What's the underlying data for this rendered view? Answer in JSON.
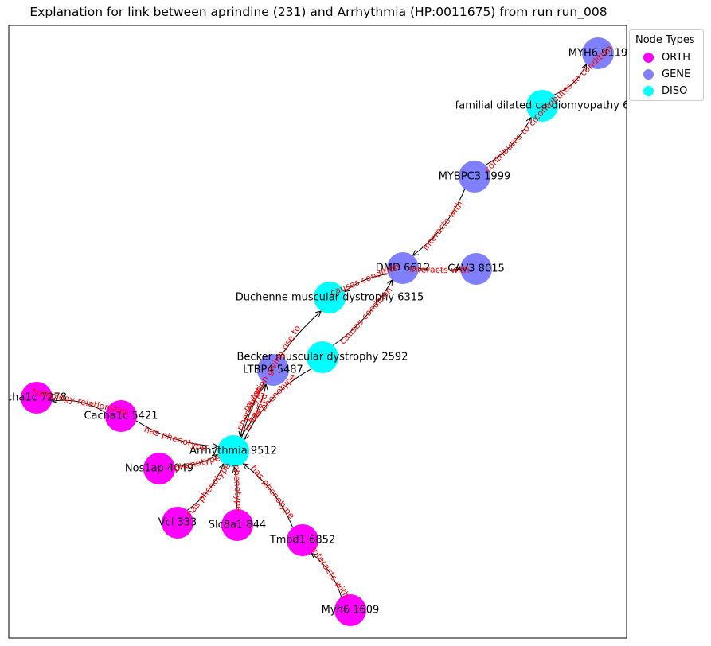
{
  "title": "Explanation for link between aprindine (231) and Arrhythmia (HP:0011675) from run run_008",
  "legend": {
    "title": "Node Types",
    "items": [
      {
        "label": "ORTH",
        "color": "#ff00ff"
      },
      {
        "label": "GENE",
        "color": "#8080ff"
      },
      {
        "label": "DISO",
        "color": "#00ffff"
      }
    ]
  },
  "nodes": [
    {
      "id": "myh6_9119",
      "label": "MYH6 9119",
      "type": "GENE"
    },
    {
      "id": "fdc",
      "label": "familial dilated cardiomyopathy 6",
      "type": "DISO"
    },
    {
      "id": "mybpc3",
      "label": "MYBPC3 1999",
      "type": "GENE"
    },
    {
      "id": "dmd",
      "label": "DMD 6612",
      "type": "GENE"
    },
    {
      "id": "cav3",
      "label": "CAV3 8015",
      "type": "GENE"
    },
    {
      "id": "duchenne",
      "label": "Duchenne muscular dystrophy 6315",
      "type": "DISO"
    },
    {
      "id": "becker",
      "label": "Becker muscular dystrophy 2592",
      "type": "DISO"
    },
    {
      "id": "ltbp4",
      "label": "LTBP4 5487",
      "type": "GENE"
    },
    {
      "id": "cacna1c_7278",
      "label": "cha1c 7278",
      "type": "ORTH"
    },
    {
      "id": "cacna1c_5421",
      "label": "Cacna1c 5421",
      "type": "ORTH"
    },
    {
      "id": "arrhythmia",
      "label": "Arrhythmia 9512",
      "type": "DISO"
    },
    {
      "id": "nos1ap",
      "label": "Nos1ap 4049",
      "type": "ORTH"
    },
    {
      "id": "vcl",
      "label": "Vcl 333",
      "type": "ORTH"
    },
    {
      "id": "slc8a1",
      "label": "Slc8a1 844",
      "type": "ORTH"
    },
    {
      "id": "tmod1",
      "label": "Tmod1 6852",
      "type": "ORTH"
    },
    {
      "id": "myh6_1609",
      "label": "Myh6 1609",
      "type": "ORTH"
    }
  ],
  "edges": [
    {
      "from": "fdc",
      "to": "myh6_9119",
      "label": "contributes to condition"
    },
    {
      "from": "mybpc3",
      "to": "fdc",
      "label": "contributes to co"
    },
    {
      "from": "mybpc3",
      "to": "dmd",
      "label": "interacts with"
    },
    {
      "from": "dmd",
      "to": "cav3",
      "label": "interacts with"
    },
    {
      "from": "dmd",
      "to": "duchenne",
      "label": "causes condition"
    },
    {
      "from": "becker",
      "to": "dmd",
      "label": "causes condition"
    },
    {
      "from": "arrhythmia",
      "to": "duchenne",
      "label": "mutation giving rise to"
    },
    {
      "from": "becker",
      "to": "arrhythmia",
      "label": "has phenotype"
    },
    {
      "from": "ltbp4",
      "to": "arrhythmia",
      "label": "phenotype"
    },
    {
      "from": "arrhythmia",
      "to": "ltbp4",
      "label": "is caused"
    },
    {
      "from": "cacna1c_5421",
      "to": "cacna1c_7278",
      "label": "homology relationship"
    },
    {
      "from": "cacna1c_5421",
      "to": "arrhythmia",
      "label": "has phenotype"
    },
    {
      "from": "nos1ap",
      "to": "arrhythmia",
      "label": "phenotype"
    },
    {
      "from": "vcl",
      "to": "arrhythmia",
      "label": "has phenotype"
    },
    {
      "from": "slc8a1",
      "to": "arrhythmia",
      "label": "phenotype"
    },
    {
      "from": "tmod1",
      "to": "arrhythmia",
      "label": "has phenotype"
    },
    {
      "from": "myh6_1609",
      "to": "tmod1",
      "label": "interacts with"
    }
  ]
}
